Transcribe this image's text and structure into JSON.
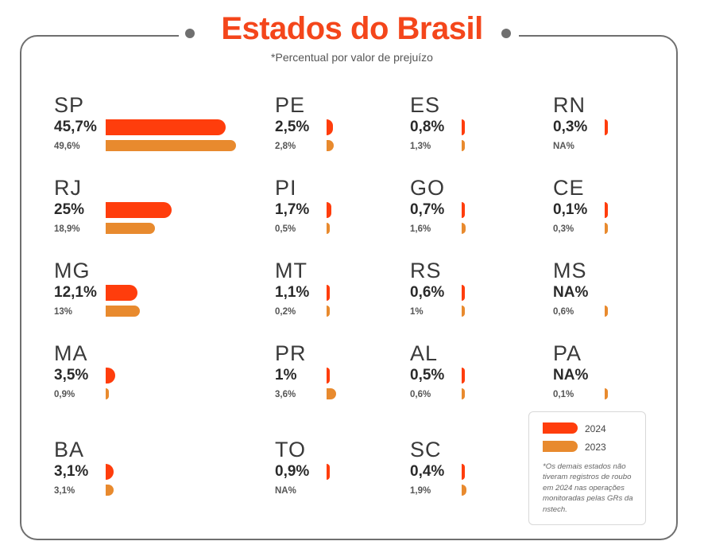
{
  "title": "Estados do Brasil",
  "subtitle": "*Percentual por valor de prejuízo",
  "legend": {
    "items": [
      {
        "label": "2024",
        "color": "#ff3d0c"
      },
      {
        "label": "2023",
        "color": "#e88a2e"
      }
    ],
    "note": "*Os demais estados não tiveram registros de roubo em 2024 nas operações monitoradas pelas GRs da nstech."
  },
  "chart_data": {
    "type": "bar",
    "series": [
      {
        "name": "2024",
        "color": "#ff3d0c"
      },
      {
        "name": "2023",
        "color": "#e88a2e"
      }
    ],
    "states": [
      {
        "abbr": "SP",
        "v2024": 45.7,
        "label2024": "45,7%",
        "v2023": 49.6,
        "label2023": "49,6%"
      },
      {
        "abbr": "RJ",
        "v2024": 25,
        "label2024": "25%",
        "v2023": 18.9,
        "label2023": "18,9%"
      },
      {
        "abbr": "MG",
        "v2024": 12.1,
        "label2024": "12,1%",
        "v2023": 13,
        "label2023": "13%"
      },
      {
        "abbr": "MA",
        "v2024": 3.5,
        "label2024": "3,5%",
        "v2023": 0.9,
        "label2023": "0,9%"
      },
      {
        "abbr": "BA",
        "v2024": 3.1,
        "label2024": "3,1%",
        "v2023": 3.1,
        "label2023": "3,1%"
      },
      {
        "abbr": "PE",
        "v2024": 2.5,
        "label2024": "2,5%",
        "v2023": 2.8,
        "label2023": "2,8%"
      },
      {
        "abbr": "PI",
        "v2024": 1.7,
        "label2024": "1,7%",
        "v2023": 0.5,
        "label2023": "0,5%"
      },
      {
        "abbr": "MT",
        "v2024": 1.1,
        "label2024": "1,1%",
        "v2023": 0.2,
        "label2023": "0,2%"
      },
      {
        "abbr": "PR",
        "v2024": 1,
        "label2024": "1%",
        "v2023": 3.6,
        "label2023": "3,6%"
      },
      {
        "abbr": "TO",
        "v2024": 0.9,
        "label2024": "0,9%",
        "v2023": null,
        "label2023": "NA%"
      },
      {
        "abbr": "ES",
        "v2024": 0.8,
        "label2024": "0,8%",
        "v2023": 1.3,
        "label2023": "1,3%"
      },
      {
        "abbr": "GO",
        "v2024": 0.7,
        "label2024": "0,7%",
        "v2023": 1.6,
        "label2023": "1,6%"
      },
      {
        "abbr": "RS",
        "v2024": 0.6,
        "label2024": "0,6%",
        "v2023": 1,
        "label2023": "1%"
      },
      {
        "abbr": "AL",
        "v2024": 0.5,
        "label2024": "0,5%",
        "v2023": 0.6,
        "label2023": "0,6%"
      },
      {
        "abbr": "SC",
        "v2024": 0.4,
        "label2024": "0,4%",
        "v2023": 1.9,
        "label2023": "1,9%"
      },
      {
        "abbr": "RN",
        "v2024": 0.3,
        "label2024": "0,3%",
        "v2023": null,
        "label2023": "NA%"
      },
      {
        "abbr": "CE",
        "v2024": 0.1,
        "label2024": "0,1%",
        "v2023": 0.3,
        "label2023": "0,3%"
      },
      {
        "abbr": "MS",
        "v2024": null,
        "label2024": "NA%",
        "v2023": 0.6,
        "label2023": "0,6%"
      },
      {
        "abbr": "PA",
        "v2024": null,
        "label2024": "NA%",
        "v2023": 0.1,
        "label2023": "0,1%"
      }
    ]
  }
}
